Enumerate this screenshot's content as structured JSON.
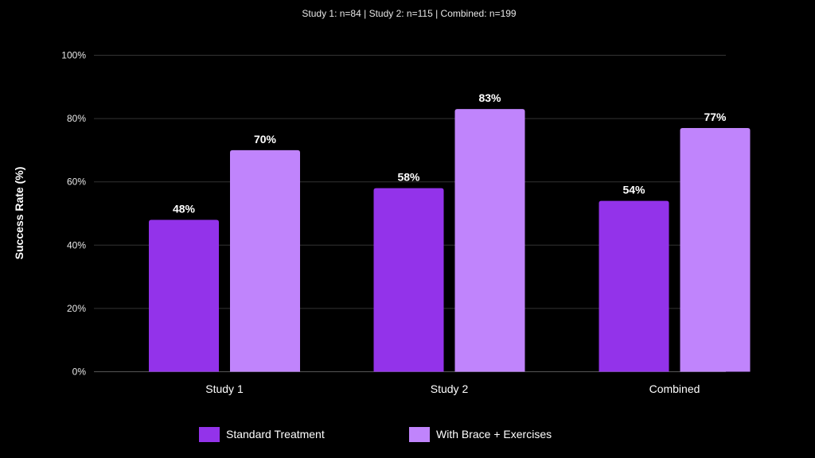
{
  "chart_data": {
    "type": "bar",
    "subtitle": "Study 1: n=84 | Study 2: n=115 | Combined: n=199",
    "xlabel": "",
    "ylabel": "Success Rate (%)",
    "ylim": [
      0,
      100
    ],
    "yticks": [
      0,
      20,
      40,
      60,
      80,
      100
    ],
    "ytick_labels": [
      "0%",
      "20%",
      "40%",
      "60%",
      "80%",
      "100%"
    ],
    "grid": true,
    "legend_position": "bottom",
    "categories": [
      "Study 1",
      "Study 2",
      "Combined"
    ],
    "series": [
      {
        "name": "Standard Treatment",
        "color": "#9333ea",
        "values": [
          48,
          58,
          54
        ],
        "labels": [
          "48%",
          "58%",
          "54%"
        ]
      },
      {
        "name": "With Brace + Exercises",
        "color": "#c084fc",
        "values": [
          70,
          83,
          77
        ],
        "labels": [
          "70%",
          "83%",
          "77%"
        ]
      }
    ]
  }
}
